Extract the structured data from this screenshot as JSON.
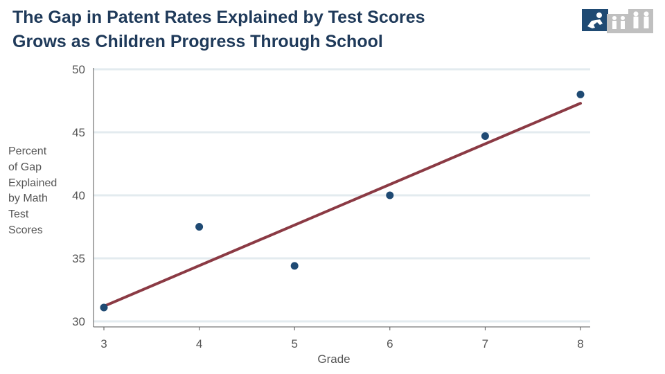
{
  "chart_data": {
    "type": "scatter",
    "title_lines": [
      "The Gap in Patent Rates Explained by Test Scores",
      "Grows as Children Progress Through School"
    ],
    "xlabel": "Grade",
    "ylabel_lines": [
      "Percent",
      "of Gap",
      "Explained",
      "by Math",
      "Test",
      "Scores"
    ],
    "xlim": [
      2.9,
      8.1
    ],
    "ylim": [
      30,
      50
    ],
    "x_ticks": [
      3,
      4,
      5,
      6,
      7,
      8
    ],
    "y_ticks": [
      30,
      35,
      40,
      45,
      50
    ],
    "grid": "horizontal",
    "points": [
      {
        "x": 3,
        "y": 31.1
      },
      {
        "x": 4,
        "y": 37.5
      },
      {
        "x": 5,
        "y": 34.4
      },
      {
        "x": 6,
        "y": 40.0
      },
      {
        "x": 7,
        "y": 44.7
      },
      {
        "x": 8,
        "y": 48.0
      }
    ],
    "fit_line": {
      "x": [
        3,
        8
      ],
      "y": [
        31.2,
        47.3
      ]
    },
    "colors": {
      "points": "#1f4a73",
      "fit_line": "#8b3a44",
      "grid": "#e3ebef",
      "title": "#1f3a5a",
      "text": "#555555",
      "logo_primary": "#1f4a73",
      "logo_secondary": "#c0c0c0"
    },
    "logo_icon": "people-progression-icon"
  }
}
